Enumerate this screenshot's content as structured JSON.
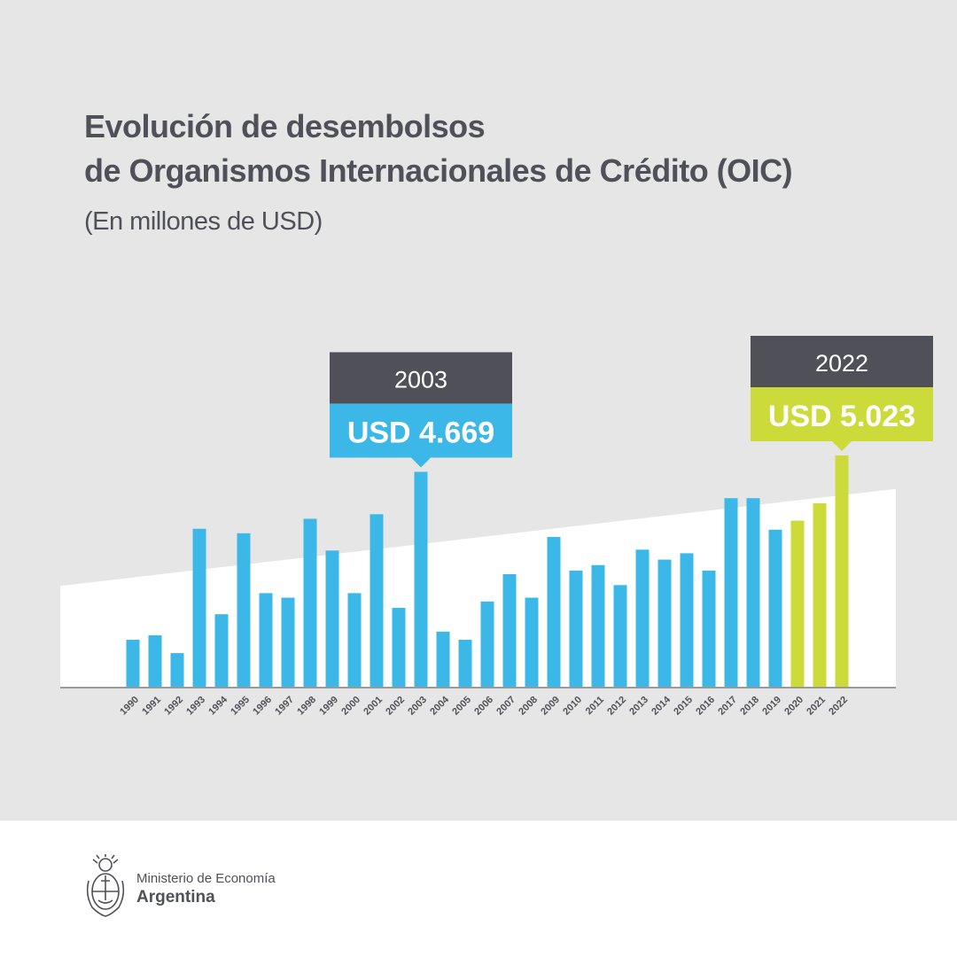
{
  "header": {
    "title_line1": "Evolución de desembolsos",
    "title_line2": "de Organismos Internacionales de Crédito (OIC)",
    "subtitle": "(En millones de USD)"
  },
  "colors": {
    "background": "#e6e6e6",
    "blue_bar": "#3cb8e8",
    "green_bar": "#cddb3a",
    "callout_header": "#505158",
    "text": "#505158"
  },
  "chart_data": {
    "type": "bar",
    "title": "Evolución de desembolsos de Organismos Internacionales de Crédito (OIC)",
    "subtitle": "(En millones de USD)",
    "unit": "millones de USD",
    "categories": [
      "1990",
      "1991",
      "1992",
      "1993",
      "1994",
      "1995",
      "1996",
      "1997",
      "1998",
      "1999",
      "2000",
      "2001",
      "2002",
      "2003",
      "2004",
      "2005",
      "2006",
      "2007",
      "2008",
      "2009",
      "2010",
      "2011",
      "2012",
      "2013",
      "2014",
      "2015",
      "2016",
      "2017",
      "2018",
      "2019",
      "2020",
      "2021",
      "2022"
    ],
    "values": [
      1035,
      1133,
      746,
      3437,
      1588,
      3339,
      2044,
      1946,
      3653,
      2966,
      2044,
      3751,
      1726,
      4669,
      1212,
      1035,
      1863,
      2454,
      1946,
      3260,
      2533,
      2651,
      2218,
      2985,
      2769,
      2907,
      2533,
      4099,
      4099,
      3417,
      3614,
      3988,
      5023
    ],
    "bar_colors": [
      "blue",
      "blue",
      "blue",
      "blue",
      "blue",
      "blue",
      "blue",
      "blue",
      "blue",
      "blue",
      "blue",
      "blue",
      "blue",
      "blue",
      "blue",
      "blue",
      "blue",
      "blue",
      "blue",
      "blue",
      "blue",
      "blue",
      "blue",
      "blue",
      "blue",
      "blue",
      "blue",
      "blue",
      "blue",
      "blue",
      "green",
      "green",
      "green"
    ],
    "ylim": [
      0,
      5100
    ],
    "trend_band": {
      "start_value": 2200,
      "end_value": 4300
    },
    "annotations": [
      {
        "category": "2003",
        "year_label": "2003",
        "value_label": "USD 4.669",
        "color": "blue"
      },
      {
        "category": "2022",
        "year_label": "2022",
        "value_label": "USD 5.023",
        "color": "green"
      }
    ]
  },
  "footer": {
    "ministry_name": "Ministerio de Economía",
    "country": "Argentina",
    "logo_icon": "coat-of-arms-icon"
  }
}
